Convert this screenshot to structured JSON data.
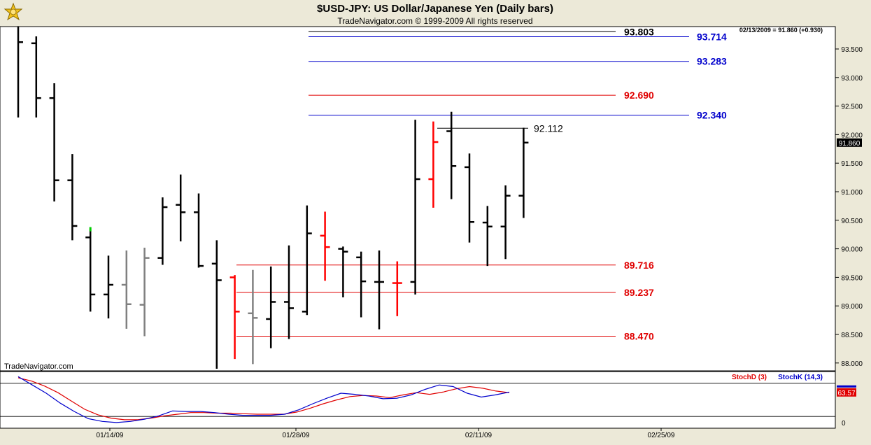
{
  "header": {
    "title": "$USD-JPY:  US Dollar/Japanese Yen  (Daily bars)",
    "copyright": "TradeNavigator.com © 1999-2009 All rights reserved",
    "quote": "02/13/2009 = 91.860 (+0.930)",
    "watermark": "TradeNavigator.com"
  },
  "chart_data": {
    "type": "ohlc",
    "y_range": [
      87.85,
      93.95
    ],
    "y_ticks": [
      "93.500",
      "93.000",
      "92.500",
      "92.000",
      "91.500",
      "91.000",
      "90.500",
      "90.000",
      "89.500",
      "89.000",
      "88.500",
      "88.000"
    ],
    "last_price": "91.860",
    "x_labels": [
      "01/14/09",
      "01/28/09",
      "02/11/09",
      "02/25/09"
    ],
    "bars": [
      {
        "o": null,
        "h": 93.9,
        "l": 92.3,
        "c": 93.62,
        "color": "black"
      },
      {
        "o": 93.6,
        "h": 93.72,
        "l": 92.3,
        "c": 92.64,
        "color": "black"
      },
      {
        "o": 92.64,
        "h": 92.9,
        "l": 90.83,
        "c": 91.2,
        "color": "black"
      },
      {
        "o": 91.2,
        "h": 91.66,
        "l": 90.15,
        "c": 90.4,
        "color": "black"
      },
      {
        "o": 90.2,
        "h": 90.35,
        "l": 88.9,
        "c": 89.2,
        "color": "black"
      },
      {
        "o": 89.2,
        "h": 89.88,
        "l": 88.78,
        "c": 89.37,
        "color": "black"
      },
      {
        "o": 89.37,
        "h": 89.97,
        "l": 88.6,
        "c": 89.03,
        "color": "gray"
      },
      {
        "o": 89.02,
        "h": 90.02,
        "l": 88.47,
        "c": 89.84,
        "color": "gray"
      },
      {
        "o": 89.84,
        "h": 90.9,
        "l": 89.72,
        "c": 90.73,
        "color": "black"
      },
      {
        "o": 90.77,
        "h": 91.3,
        "l": 90.13,
        "c": 90.64,
        "color": "black"
      },
      {
        "o": 90.64,
        "h": 90.97,
        "l": 89.67,
        "c": 89.7,
        "color": "black"
      },
      {
        "o": 89.74,
        "h": 90.15,
        "l": 87.9,
        "c": 89.45,
        "color": "black"
      },
      {
        "o": 89.5,
        "h": 89.54,
        "l": 88.07,
        "c": 88.9,
        "color": "red"
      },
      {
        "o": 88.87,
        "h": 89.63,
        "l": 87.98,
        "c": 88.79,
        "color": "gray"
      },
      {
        "o": 88.77,
        "h": 89.69,
        "l": 88.26,
        "c": 89.07,
        "color": "black"
      },
      {
        "o": 89.07,
        "h": 90.06,
        "l": 88.42,
        "c": 88.96,
        "color": "black"
      },
      {
        "o": 88.9,
        "h": 90.76,
        "l": 88.84,
        "c": 90.27,
        "color": "black"
      },
      {
        "o": 90.23,
        "h": 90.65,
        "l": 89.44,
        "c": 90.03,
        "color": "red"
      },
      {
        "o": 90.0,
        "h": 90.04,
        "l": 89.15,
        "c": 89.95,
        "color": "black"
      },
      {
        "o": 89.85,
        "h": 89.95,
        "l": 88.8,
        "c": 89.43,
        "color": "black"
      },
      {
        "o": 89.42,
        "h": 89.97,
        "l": 88.59,
        "c": 89.42,
        "color": "black"
      },
      {
        "o": 89.4,
        "h": 89.78,
        "l": 88.82,
        "c": 89.4,
        "color": "red"
      },
      {
        "o": 89.42,
        "h": 92.26,
        "l": 89.2,
        "c": 91.22,
        "color": "black"
      },
      {
        "o": 91.22,
        "h": 92.23,
        "l": 90.72,
        "c": 91.87,
        "color": "red"
      },
      {
        "o": 92.06,
        "h": 92.4,
        "l": 90.87,
        "c": 91.45,
        "color": "black"
      },
      {
        "o": 91.43,
        "h": 91.67,
        "l": 90.11,
        "c": 90.47,
        "color": "black"
      },
      {
        "o": 90.46,
        "h": 90.75,
        "l": 89.7,
        "c": 90.39,
        "color": "black"
      },
      {
        "o": 90.39,
        "h": 91.11,
        "l": 89.82,
        "c": 90.93,
        "color": "black"
      },
      {
        "o": 90.93,
        "h": 92.12,
        "l": 90.54,
        "c": 91.86,
        "color": "black"
      }
    ],
    "levels": [
      {
        "value": 93.803,
        "label": "93.803",
        "color": "#000000"
      },
      {
        "value": 93.714,
        "label": "93.714",
        "color": "#0000cc"
      },
      {
        "value": 93.283,
        "label": "93.283",
        "color": "#0000cc"
      },
      {
        "value": 92.69,
        "label": "92.690",
        "color": "#e00000"
      },
      {
        "value": 92.34,
        "label": "92.340",
        "color": "#0000cc"
      },
      {
        "value": 92.112,
        "label": "92.112",
        "color": "#000000"
      },
      {
        "value": 89.716,
        "label": "89.716",
        "color": "#e00000"
      },
      {
        "value": 89.237,
        "label": "89.237",
        "color": "#e00000"
      },
      {
        "value": 88.47,
        "label": "88.470",
        "color": "#e00000"
      }
    ],
    "indicator": {
      "stochd_label": "StochD (3)",
      "stochk_label": "StochK (14,3)",
      "last_value": "63.57",
      "zero_label": "0",
      "y_range": [
        0,
        100
      ],
      "upper_line": 80,
      "lower_line": 20,
      "stochd": [
        90,
        84,
        75,
        63,
        48,
        33,
        23,
        17,
        14,
        14,
        17,
        21,
        24,
        27,
        27,
        26,
        26,
        25,
        24,
        24,
        24,
        28,
        35,
        43,
        50,
        56,
        58,
        57,
        54,
        59,
        63,
        60,
        64,
        70,
        74,
        71,
        66,
        63
      ],
      "stochk": [
        92,
        77,
        62,
        44,
        29,
        16,
        11,
        9,
        11,
        15,
        21,
        30,
        29,
        29,
        27,
        24,
        22,
        22,
        22,
        24,
        32,
        43,
        53,
        62,
        60,
        57,
        52,
        53,
        59,
        69,
        77,
        74,
        62,
        55,
        59,
        64
      ]
    },
    "colors": {
      "background": "#ffffff",
      "up_black": "#000000",
      "gray": "#808080",
      "red": "#ff0000",
      "green": "#00cc00",
      "panel": "#ece9d8"
    }
  }
}
